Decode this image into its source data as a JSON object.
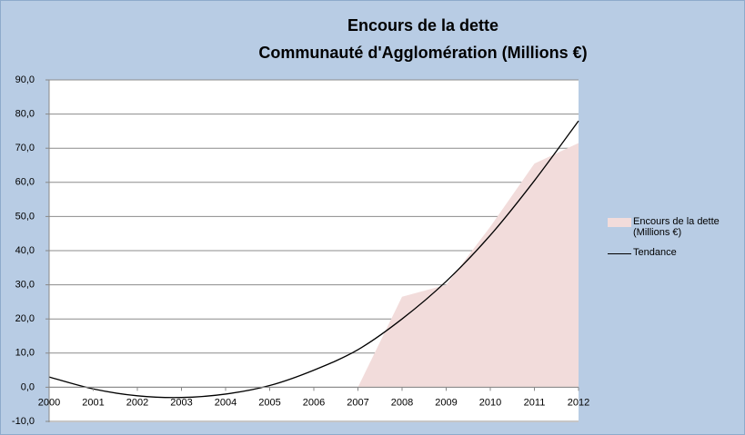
{
  "chart_data": {
    "type": "area",
    "title": "Encours de la dette",
    "subtitle": "Communauté d'Agglomération  (Millions €)",
    "categories": [
      "2000",
      "2001",
      "2002",
      "2003",
      "2004",
      "2005",
      "2006",
      "2007",
      "2008",
      "2009",
      "2010",
      "2011",
      "2012"
    ],
    "series": [
      {
        "name": "Encours de la dette (Millions €)",
        "type": "area",
        "color": "#f2dcdb",
        "values": [
          0,
          0,
          0,
          0,
          0,
          0,
          0,
          0,
          26.5,
          30,
          47,
          65.5,
          71.5
        ]
      },
      {
        "name": "Tendance",
        "type": "line",
        "color": "#000000",
        "values": [
          3,
          -0.5,
          -2.5,
          -3,
          -2,
          0.5,
          5,
          11,
          20,
          31,
          44.5,
          60.5,
          78
        ]
      }
    ],
    "ylim": [
      -10,
      90
    ],
    "yticks": [
      {
        "value": -10,
        "label": "-10,0"
      },
      {
        "value": 0,
        "label": "0,0"
      },
      {
        "value": 10,
        "label": "10,0"
      },
      {
        "value": 20,
        "label": "20,0"
      },
      {
        "value": 30,
        "label": "30,0"
      },
      {
        "value": 40,
        "label": "40,0"
      },
      {
        "value": 50,
        "label": "50,0"
      },
      {
        "value": 60,
        "label": "60,0"
      },
      {
        "value": 70,
        "label": "70,0"
      },
      {
        "value": 80,
        "label": "80,0"
      },
      {
        "value": 90,
        "label": "90,0"
      }
    ],
    "grid": true
  }
}
